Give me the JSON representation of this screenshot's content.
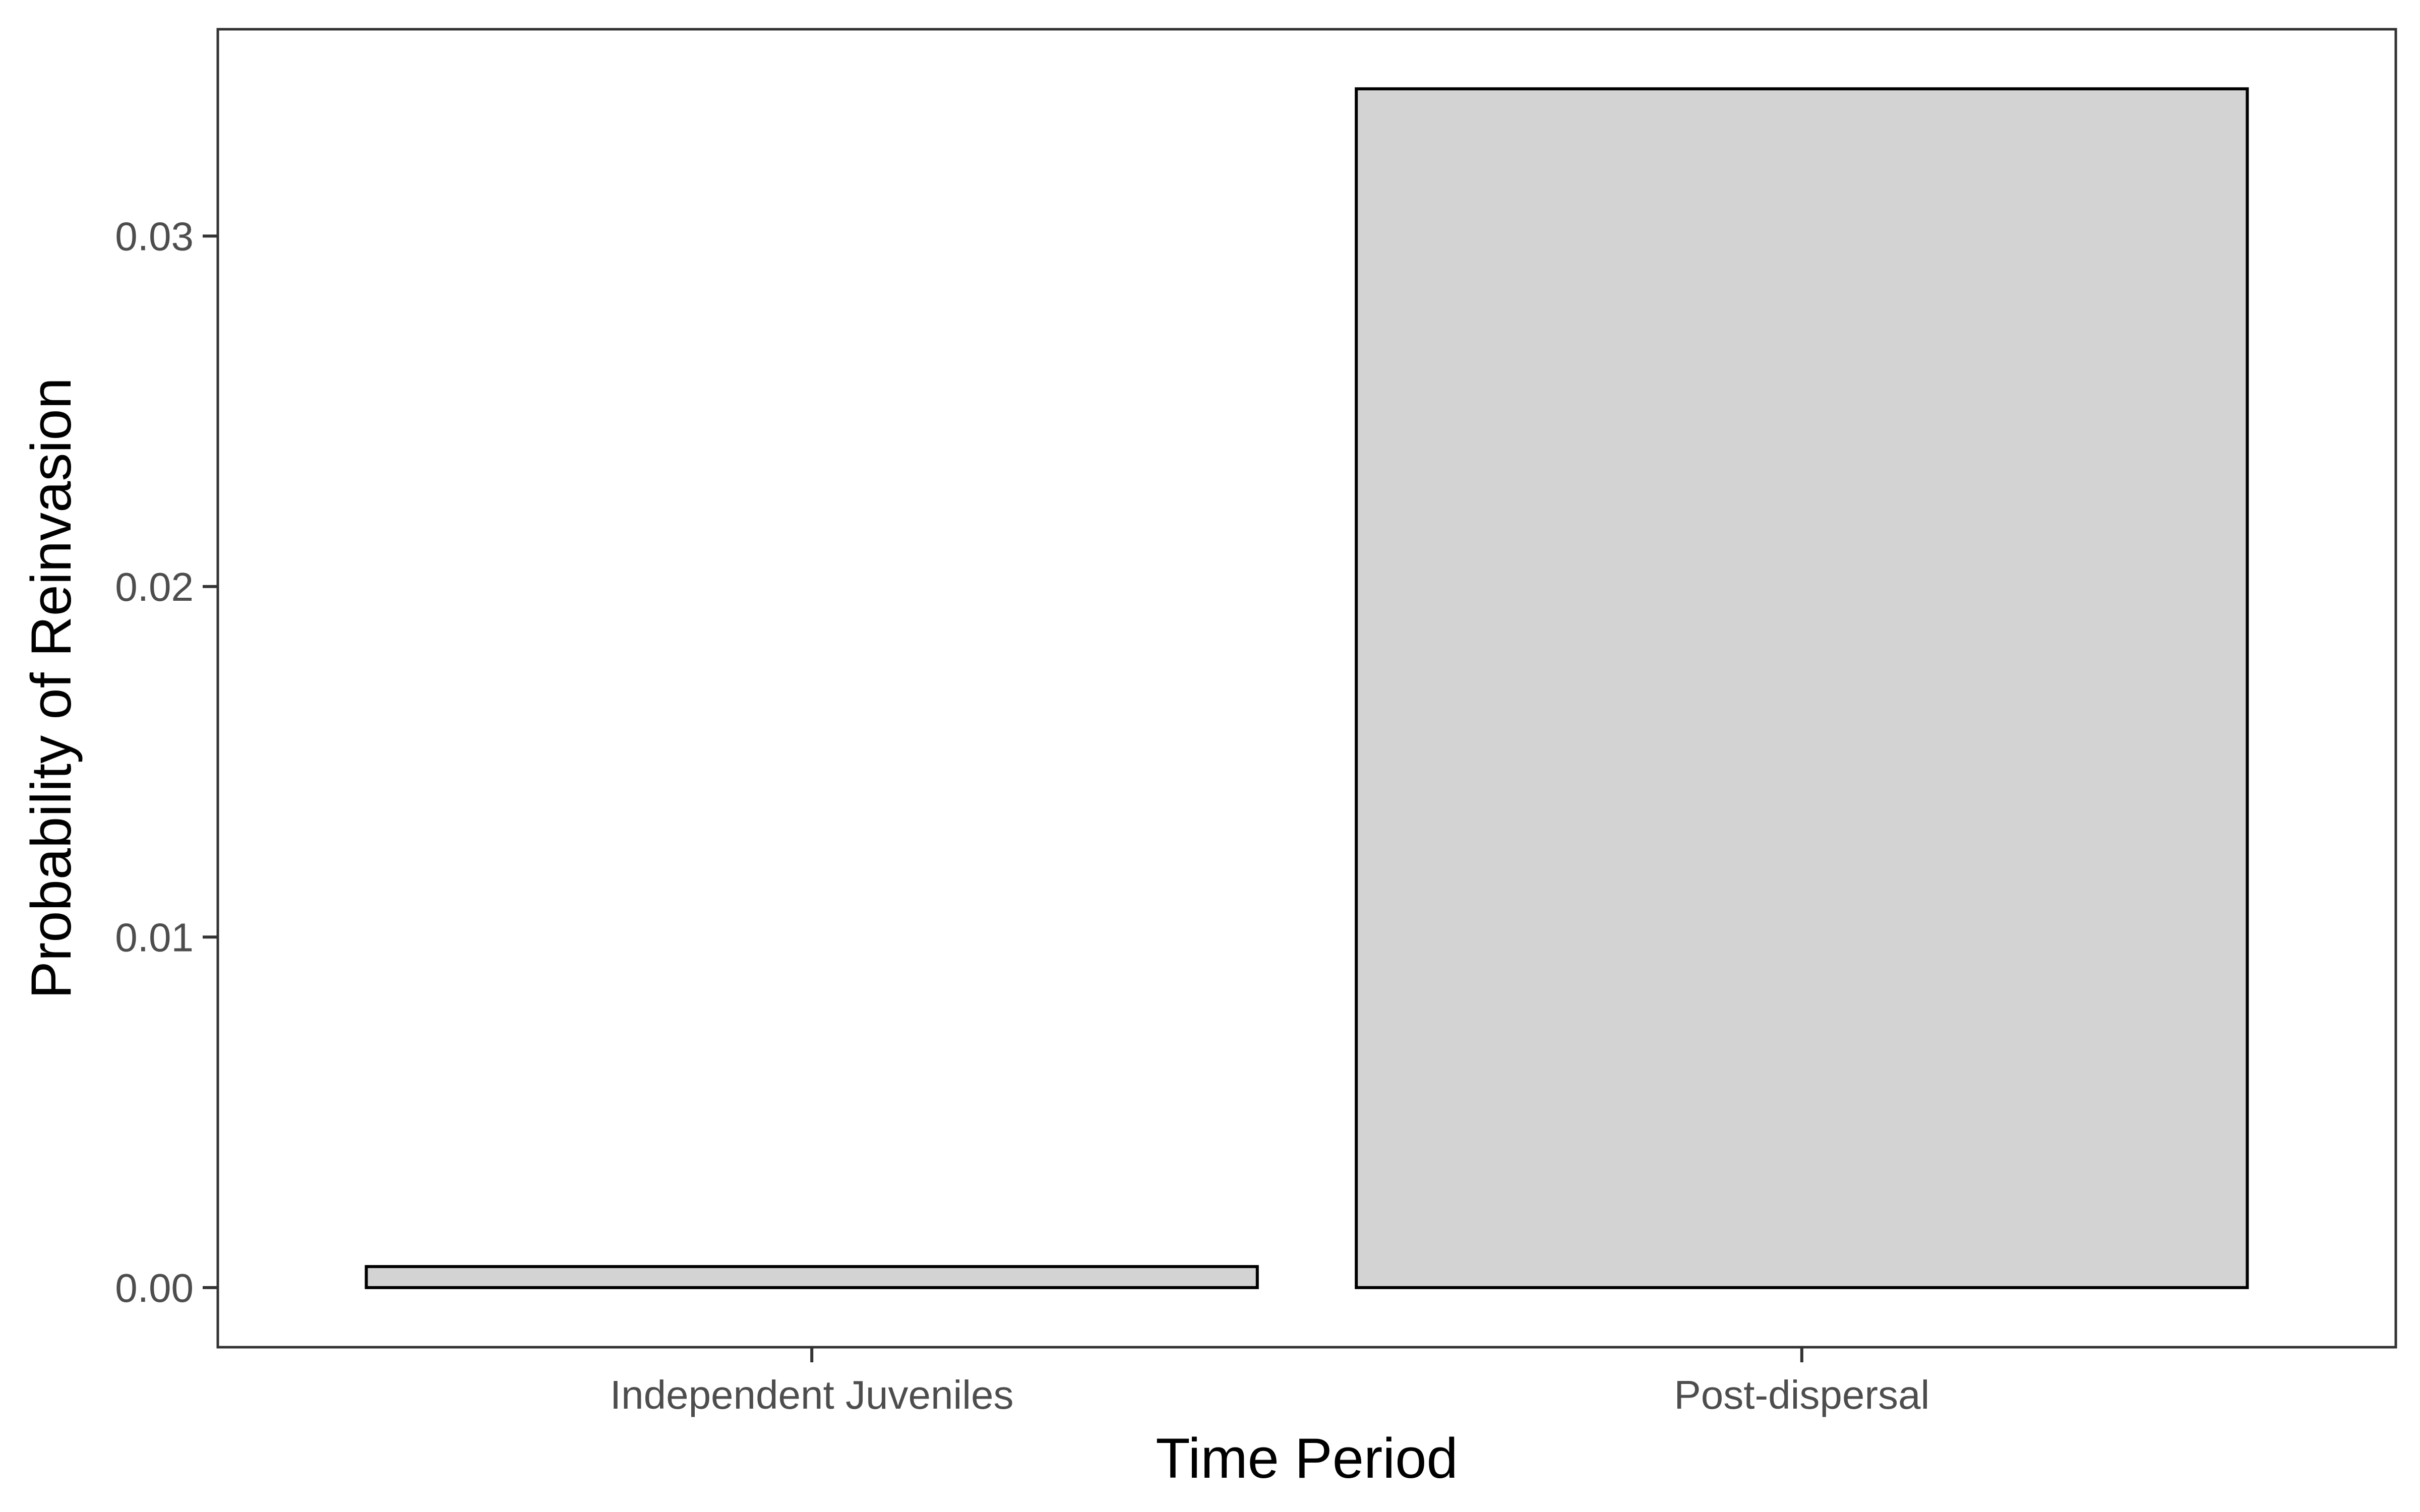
{
  "chart_data": {
    "type": "bar",
    "categories": [
      "Independent Juveniles",
      "Post-dispersal"
    ],
    "values": [
      0.0006,
      0.0342
    ],
    "title": "",
    "xlabel": "Time Period",
    "ylabel": "Probability of Reinvasion",
    "ylim": [
      -0.0017,
      0.0359
    ],
    "yticks": [
      0.0,
      0.01,
      0.02,
      0.03
    ],
    "ytick_labels": [
      "0.00",
      "0.01",
      "0.02",
      "0.03"
    ],
    "grid": false,
    "legend": "none",
    "bar_fill": "#d3d3d3",
    "bar_stroke": "#000000",
    "panel_border": "#333333"
  }
}
